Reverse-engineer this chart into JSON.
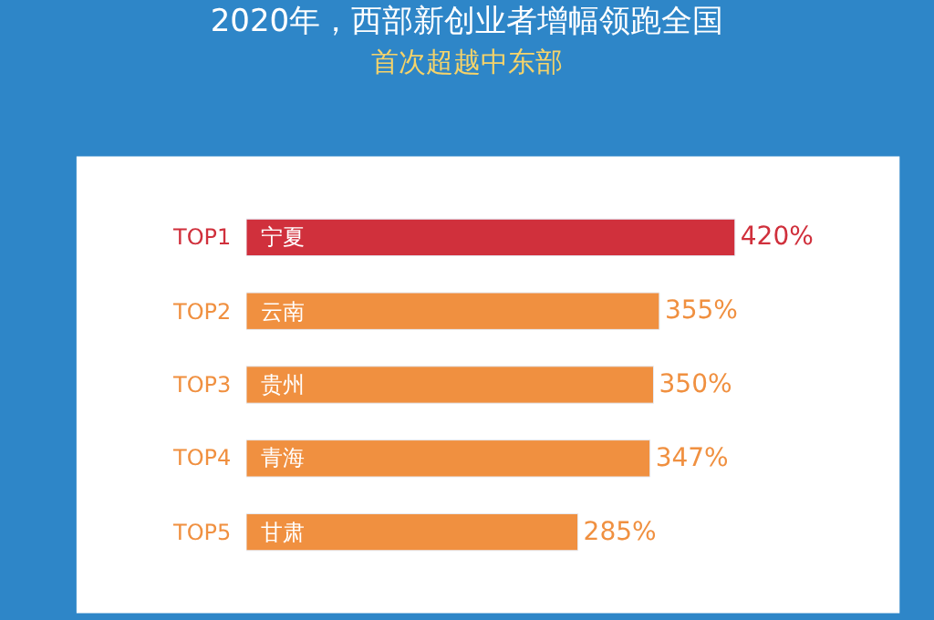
{
  "chart_data": {
    "type": "bar",
    "orientation": "horizontal",
    "title": "2020年，西部新创业者增幅领跑全国",
    "subtitle": "首次超越中东部",
    "categories": [
      "宁夏",
      "云南",
      "贵州",
      "青海",
      "甘肃"
    ],
    "values": [
      420,
      355,
      350,
      347,
      285
    ],
    "colors": [
      "#d0303c",
      "#f09040",
      "#f09040",
      "#f09040",
      "#f09040"
    ],
    "value_labels": [
      "420%",
      "355%",
      "350%",
      "347%",
      "285%"
    ],
    "annotations": [
      "TOP1",
      "TOP2",
      "TOP3",
      "TOP4",
      "TOP5"
    ],
    "legend": false
  }
}
